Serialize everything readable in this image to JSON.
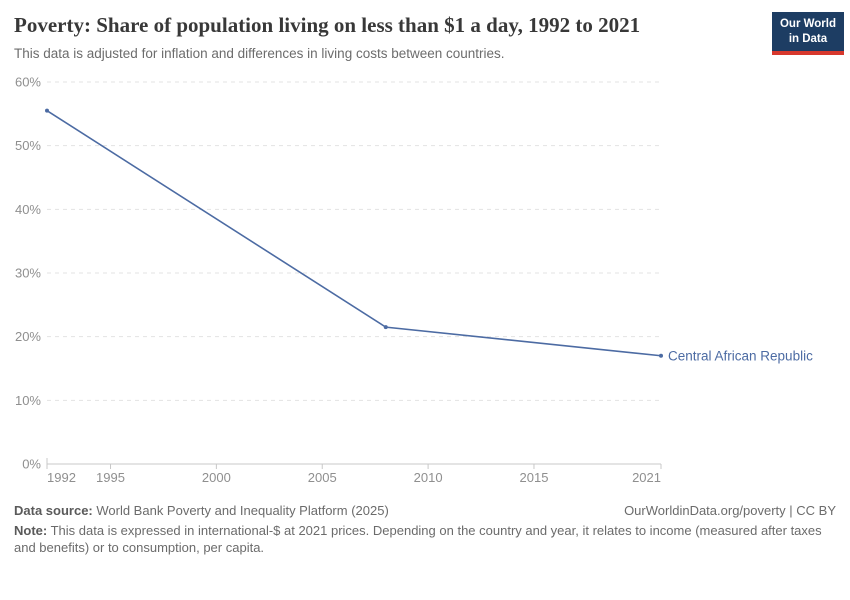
{
  "header": {
    "title": "Poverty: Share of population living on less than $1 a day, 1992 to 2021",
    "subtitle": "This data is adjusted for inflation and differences in living costs between countries.",
    "logo": {
      "line1": "Our World",
      "line2": "in Data",
      "bg_color": "#1d3d63",
      "accent_color": "#d7382d"
    }
  },
  "chart_data": {
    "type": "line",
    "title": "Poverty: Share of population living on less than $1 a day, 1992 to 2021",
    "xlabel": "",
    "ylabel": "",
    "xlim": [
      1992,
      2021
    ],
    "ylim": [
      0,
      60
    ],
    "x_ticks": [
      1992,
      1995,
      2000,
      2005,
      2010,
      2015,
      2021
    ],
    "y_ticks": [
      0,
      10,
      20,
      30,
      40,
      50,
      60
    ],
    "y_tick_suffix": "%",
    "grid": "horizontal-dashed",
    "legend_position": "end-of-line-label",
    "series": [
      {
        "name": "Central African Republic",
        "color": "#4c6ba3",
        "x": [
          1992,
          2008,
          2021
        ],
        "values": [
          55.5,
          21.5,
          17.0
        ]
      }
    ],
    "axis_color": "#c8c8c8",
    "gridline_color": "#e3e3e3",
    "tick_label_color": "#8f8f8f"
  },
  "footer": {
    "source_label": "Data source:",
    "source_text": " World Bank Poverty and Inequality Platform (2025)",
    "rights": "OurWorldinData.org/poverty | CC BY",
    "note_label": "Note:",
    "note_text": " This data is expressed in international-$ at 2021 prices. Depending on the country and year, it relates to income (measured after taxes and benefits) or to consumption, per capita."
  }
}
